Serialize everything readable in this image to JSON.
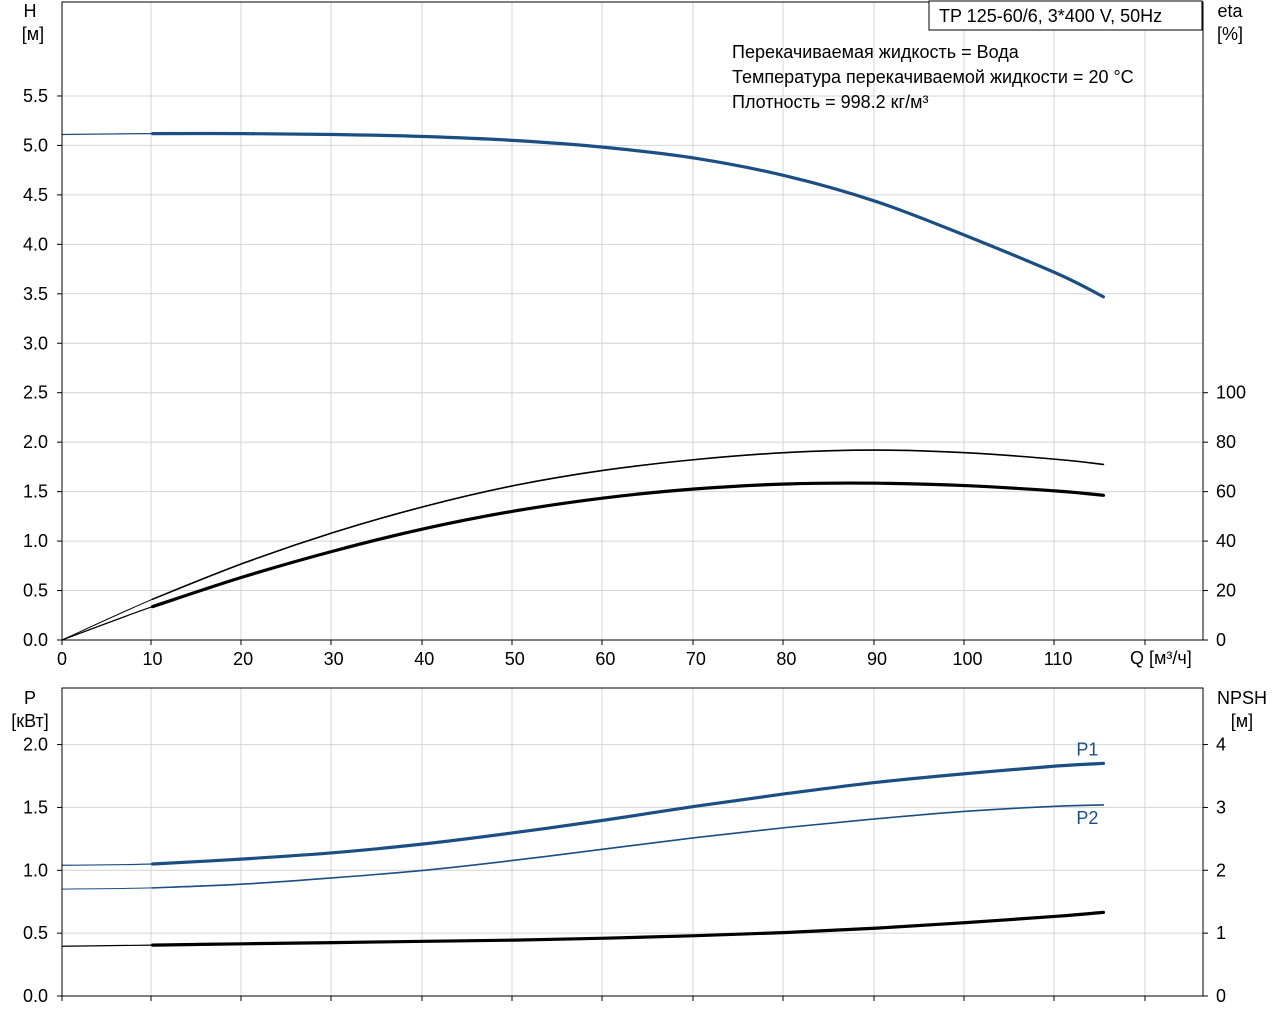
{
  "legend_box": {
    "text": "TP 125-60/6, 3*400 V, 50Hz"
  },
  "conditions": [
    "Перекачиваемая жидкость = Вода",
    "Температура перекачиваемой жидкости = 20 °C",
    "Плотность = 998.2 кг/м³"
  ],
  "colors": {
    "blue": "#1b4f84",
    "black": "#000000",
    "grid": "#d4d4d4"
  },
  "chart_data": [
    {
      "type": "line",
      "title": "",
      "xlabel": "Q [м³/ч]",
      "xlim": [
        0,
        126
      ],
      "x_ticks": [
        "0",
        "10",
        "20",
        "30",
        "40",
        "50",
        "60",
        "70",
        "80",
        "90",
        "100",
        "110"
      ],
      "ylabel_left": [
        "H",
        "[м]"
      ],
      "ylim_left": [
        0,
        6.45
      ],
      "y_ticks_left": [
        "0.0",
        "0.5",
        "1.0",
        "1.5",
        "2.0",
        "2.5",
        "3.0",
        "3.5",
        "4.0",
        "4.5",
        "5.0",
        "5.5"
      ],
      "ylabel_right": [
        "eta",
        "[%]"
      ],
      "ylim_right": [
        0,
        258
      ],
      "y_ticks_right": [
        "0",
        "20",
        "40",
        "60",
        "80",
        "100"
      ],
      "grid": true,
      "series": [
        {
          "axis": "left",
          "color": "#1b4f84",
          "width": 3.2,
          "x": [
            0,
            10,
            20,
            30,
            40,
            50,
            60,
            70,
            80,
            90,
            100,
            110,
            115
          ],
          "y": [
            5.11,
            5.12,
            5.12,
            5.11,
            5.09,
            5.05,
            4.98,
            4.87,
            4.69,
            4.43,
            4.08,
            3.7,
            3.47
          ],
          "range_start": 10
        },
        {
          "axis": "right",
          "color": "#000000",
          "width": 1.6,
          "x": [
            0,
            10,
            20,
            30,
            40,
            50,
            60,
            70,
            80,
            90,
            100,
            110,
            115
          ],
          "y": [
            0,
            16.5,
            31,
            43.5,
            54,
            62.5,
            68.7,
            73,
            75.8,
            76.8,
            75.7,
            73,
            71
          ],
          "range_start": 10
        },
        {
          "axis": "right",
          "color": "#000000",
          "width": 3.2,
          "x": [
            0,
            10,
            20,
            30,
            40,
            50,
            60,
            70,
            80,
            90,
            100,
            110,
            115
          ],
          "y": [
            0,
            13.5,
            25.5,
            36,
            45,
            52.2,
            57.5,
            61.1,
            63.1,
            63.4,
            62.4,
            60.2,
            58.5
          ],
          "range_start": 10
        }
      ]
    },
    {
      "type": "line",
      "title": "",
      "xlabel": "",
      "xlim": [
        0,
        126
      ],
      "ylabel_left": [
        "P",
        "[кВт]"
      ],
      "ylim_left": [
        0,
        2.45
      ],
      "y_ticks_left": [
        "0.0",
        "0.5",
        "1.0",
        "1.5",
        "2.0"
      ],
      "ylabel_right": [
        "NPSH",
        "[м]"
      ],
      "ylim_right": [
        0,
        4.9
      ],
      "y_ticks_right": [
        "0",
        "1",
        "2",
        "3",
        "4"
      ],
      "grid": true,
      "series": [
        {
          "name": "P1",
          "axis": "left",
          "color": "#1b4f84",
          "width": 3.2,
          "x": [
            0,
            10,
            20,
            30,
            40,
            50,
            60,
            70,
            80,
            90,
            100,
            110,
            115
          ],
          "y": [
            1.04,
            1.05,
            1.09,
            1.14,
            1.21,
            1.3,
            1.4,
            1.51,
            1.61,
            1.7,
            1.77,
            1.83,
            1.85
          ],
          "range_start": 10
        },
        {
          "name": "P2",
          "axis": "left",
          "color": "#1b4f84",
          "width": 1.6,
          "x": [
            0,
            10,
            20,
            30,
            40,
            50,
            60,
            70,
            80,
            90,
            100,
            110,
            115
          ],
          "y": [
            0.85,
            0.86,
            0.89,
            0.94,
            1.0,
            1.08,
            1.17,
            1.26,
            1.34,
            1.41,
            1.47,
            1.51,
            1.52
          ],
          "range_start": 10
        },
        {
          "axis": "right",
          "color": "#000000",
          "width": 3.2,
          "x": [
            0,
            10,
            20,
            30,
            40,
            50,
            60,
            70,
            80,
            90,
            100,
            110,
            115
          ],
          "y": [
            0.79,
            0.81,
            0.83,
            0.85,
            0.87,
            0.89,
            0.92,
            0.96,
            1.01,
            1.08,
            1.17,
            1.27,
            1.33
          ],
          "range_start": 10
        }
      ]
    }
  ]
}
